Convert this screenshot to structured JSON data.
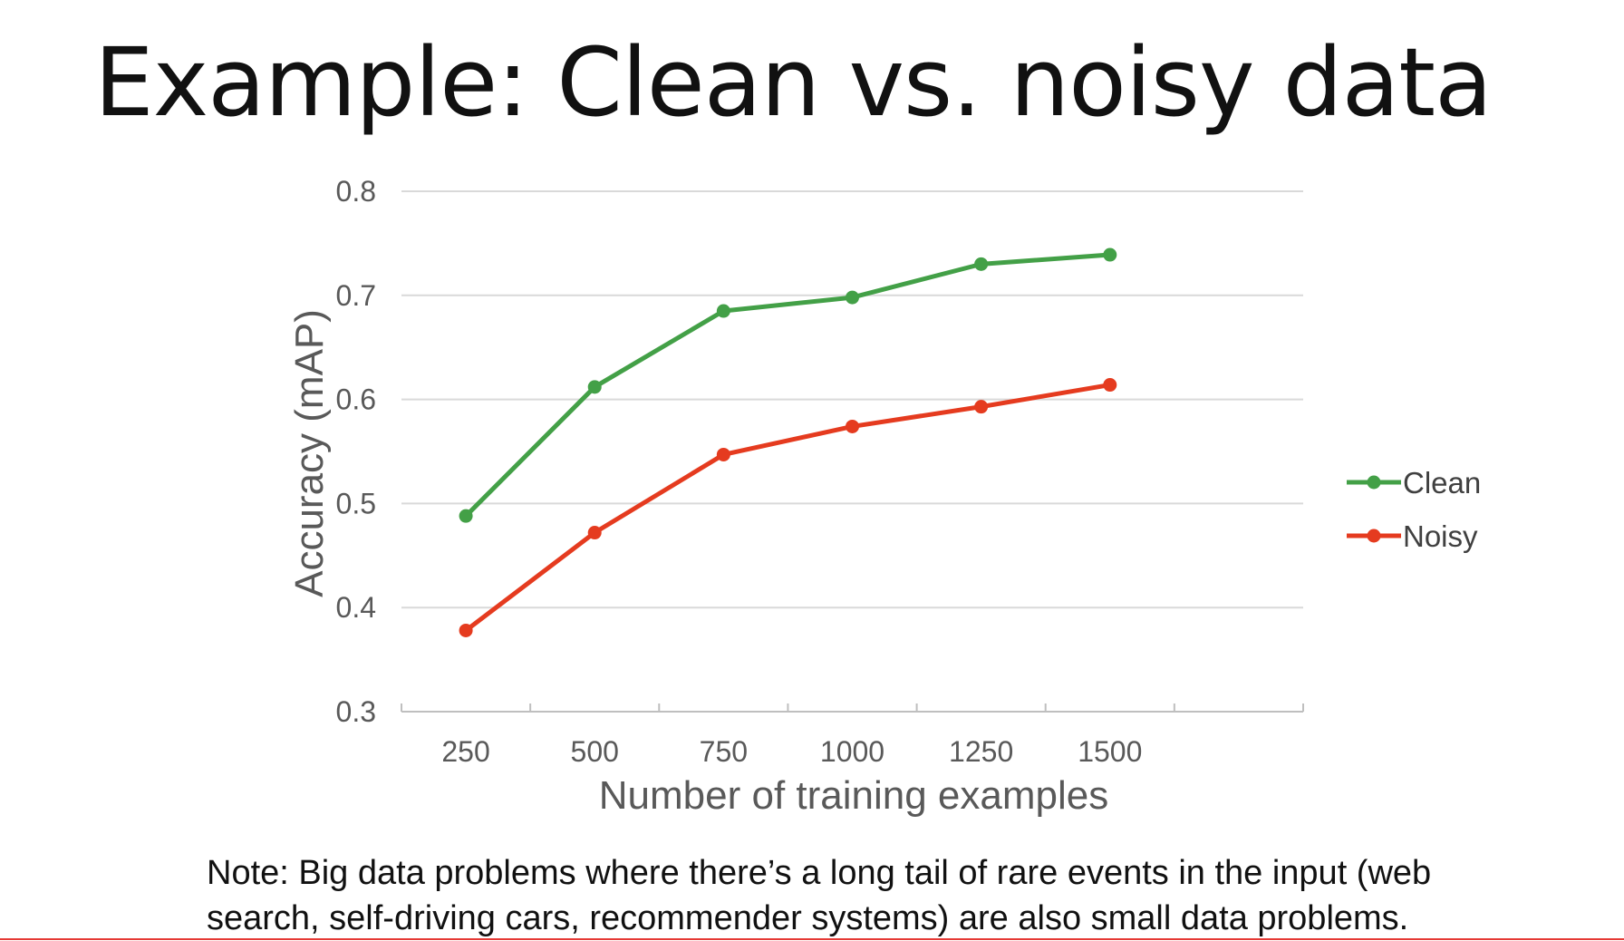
{
  "slide": {
    "title": "Example: Clean vs. noisy data",
    "note_line1": "Note: Big data problems where there’s a long tail of rare events in the input (web",
    "note_line2": "search, self-driving cars, recommender systems) are also small data problems."
  },
  "chart_data": {
    "type": "line",
    "x": [
      250,
      500,
      750,
      1000,
      1250,
      1500
    ],
    "series": [
      {
        "name": "Clean",
        "color": "#43a047",
        "values": [
          0.488,
          0.612,
          0.685,
          0.698,
          0.73,
          0.739
        ]
      },
      {
        "name": "Noisy",
        "color": "#e53b1f",
        "values": [
          0.378,
          0.472,
          0.547,
          0.574,
          0.593,
          0.614
        ]
      }
    ],
    "xlabel": "Number of training examples",
    "ylabel": "Accuracy (mAP)",
    "yticks": [
      "0.3",
      "0.4",
      "0.5",
      "0.6",
      "0.7",
      "0.8"
    ],
    "xticks": [
      "250",
      "500",
      "750",
      "1000",
      "1250",
      "1500"
    ],
    "ylim": [
      0.3,
      0.8
    ],
    "xlim": [
      125,
      1875
    ],
    "grid": true,
    "legend": "right"
  }
}
